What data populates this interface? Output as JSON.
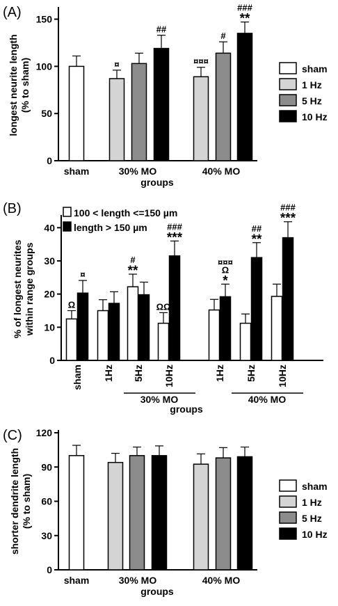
{
  "colors": {
    "sham": "#ffffff",
    "1hz": "#d4d4d4",
    "5hz": "#8c8c8c",
    "10hz": "#000000",
    "range_low": "#ffffff",
    "range_high": "#000000"
  },
  "chart_data": [
    {
      "panel": "(A)",
      "type": "bar",
      "ylabel": [
        "longest neurite length",
        "(% to sham)"
      ],
      "xlabel": "groups",
      "ylim": [
        0,
        160
      ],
      "yticks": [
        "0",
        "50",
        "100",
        "150"
      ],
      "legend": [
        "sham",
        "1 Hz",
        "5 Hz",
        "10 Hz"
      ],
      "legend_position": "right",
      "groups": [
        {
          "label": "sham",
          "bars": [
            {
              "series": "sham",
              "value": 100,
              "err": 11,
              "annotation": []
            }
          ]
        },
        {
          "label": "30% MO",
          "bars": [
            {
              "series": "1 Hz",
              "value": 87,
              "err": 9,
              "annotation": [
                "¤"
              ]
            },
            {
              "series": "5 Hz",
              "value": 103,
              "err": 11,
              "annotation": []
            },
            {
              "series": "10 Hz",
              "value": 119,
              "err": 14,
              "annotation": [
                "##"
              ]
            }
          ]
        },
        {
          "label": "40% MO",
          "bars": [
            {
              "series": "1 Hz",
              "value": 89,
              "err": 10,
              "annotation": [
                "¤¤¤"
              ]
            },
            {
              "series": "5 Hz",
              "value": 114,
              "err": 12,
              "annotation": [
                "#"
              ]
            },
            {
              "series": "10 Hz",
              "value": 135,
              "err": 12,
              "annotation": [
                "###",
                "**"
              ]
            }
          ]
        }
      ]
    },
    {
      "panel": "(B)",
      "type": "bar",
      "ylabel": [
        "% of longest neurites",
        "within range groups"
      ],
      "xlabel": "groups",
      "ylim": [
        0,
        43
      ],
      "yticks": [
        "0",
        "10",
        "20",
        "30",
        "40"
      ],
      "legend": [
        "100 < length <=150 µm",
        "length > 150 µm"
      ],
      "legend_position": "top-left",
      "subgroup_labels": [
        "30% MO",
        "40% MO"
      ],
      "groups": [
        {
          "label": "sham",
          "bars": [
            {
              "series": "100 < length <=150 µm",
              "value": 12.5,
              "err": 2.5,
              "annotation": [
                "Ω"
              ]
            },
            {
              "series": "length > 150 µm",
              "value": 20.3,
              "err": 3.8,
              "annotation": [
                "¤"
              ]
            }
          ]
        },
        {
          "label": "1Hz",
          "bars": [
            {
              "series": "100 < length <=150 µm",
              "value": 15,
              "err": 3.3,
              "annotation": []
            },
            {
              "series": "length > 150 µm",
              "value": 17.2,
              "err": 3.5,
              "annotation": []
            }
          ]
        },
        {
          "label": "5Hz",
          "bars": [
            {
              "series": "100 < length <=150 µm",
              "value": 22.2,
              "err": 3.8,
              "annotation": [
                "#",
                "**"
              ]
            },
            {
              "series": "length > 150 µm",
              "value": 19.8,
              "err": 3.8,
              "annotation": []
            }
          ]
        },
        {
          "label": "10Hz",
          "bars": [
            {
              "series": "100 < length <=150 µm",
              "value": 11.2,
              "err": 3.2,
              "annotation": [
                "ΩΩ"
              ]
            },
            {
              "series": "length > 150 µm",
              "value": 31.5,
              "err": 4.5,
              "annotation": [
                "###",
                "***"
              ]
            }
          ]
        },
        {
          "label": "1Hz",
          "bars": [
            {
              "series": "100 < length <=150 µm",
              "value": 15.2,
              "err": 3.2,
              "annotation": []
            },
            {
              "series": "length > 150 µm",
              "value": 19.2,
              "err": 3.8,
              "annotation": [
                "¤¤¤",
                "Ω",
                "*"
              ]
            }
          ]
        },
        {
          "label": "5Hz",
          "bars": [
            {
              "series": "100 < length <=150 µm",
              "value": 11.2,
              "err": 2.8,
              "annotation": []
            },
            {
              "series": "length > 150 µm",
              "value": 31,
              "err": 4.5,
              "annotation": [
                "##",
                "**"
              ]
            }
          ]
        },
        {
          "label": "10Hz",
          "bars": [
            {
              "series": "100 < length <=150 µm",
              "value": 19.3,
              "err": 3.7,
              "annotation": []
            },
            {
              "series": "length > 150 µm",
              "value": 37,
              "err": 4.8,
              "annotation": [
                "###",
                "***"
              ]
            }
          ]
        }
      ]
    },
    {
      "panel": "(C)",
      "type": "bar",
      "ylabel": [
        "shorter dendrite length",
        "(% to sham)"
      ],
      "xlabel": "groups",
      "ylim": [
        0,
        120
      ],
      "yticks": [
        "0",
        "30",
        "60",
        "90",
        "120"
      ],
      "legend": [
        "sham",
        "1 Hz",
        "5 Hz",
        "10 Hz"
      ],
      "legend_position": "right",
      "groups": [
        {
          "label": "sham",
          "bars": [
            {
              "series": "sham",
              "value": 100,
              "err": 9,
              "annotation": []
            }
          ]
        },
        {
          "label": "30% MO",
          "bars": [
            {
              "series": "1 Hz",
              "value": 94,
              "err": 8,
              "annotation": []
            },
            {
              "series": "5 Hz",
              "value": 100,
              "err": 7.5,
              "annotation": []
            },
            {
              "series": "10 Hz",
              "value": 100,
              "err": 8.5,
              "annotation": []
            }
          ]
        },
        {
          "label": "40% MO",
          "bars": [
            {
              "series": "1 Hz",
              "value": 92.5,
              "err": 9,
              "annotation": []
            },
            {
              "series": "5 Hz",
              "value": 98,
              "err": 9,
              "annotation": []
            },
            {
              "series": "10 Hz",
              "value": 99,
              "err": 8.5,
              "annotation": []
            }
          ]
        }
      ]
    }
  ]
}
